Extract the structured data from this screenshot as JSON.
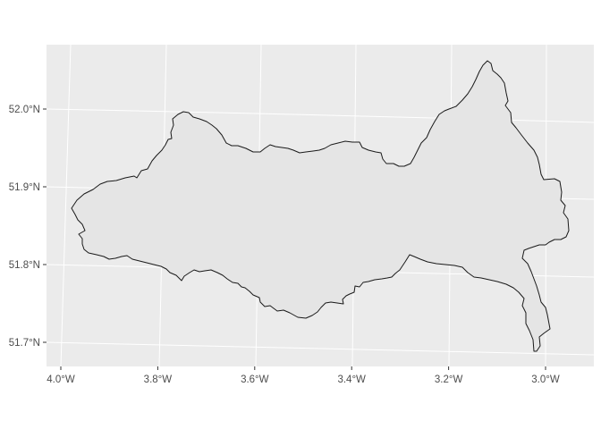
{
  "map": {
    "type": "geographic-region-outline",
    "panel_background": "#ebebeb",
    "gridline_color": "#ffffff",
    "region_fill": "#e5e5e5",
    "region_stroke": "#1a1a1a",
    "lon_range": [
      -4.0,
      -2.9
    ],
    "lat_range": [
      51.68,
      52.07
    ],
    "lon_ticks": [
      {
        "value": -4.0,
        "label": "4.0°W"
      },
      {
        "value": -3.8,
        "label": "3.8°W"
      },
      {
        "value": -3.6,
        "label": "3.6°W"
      },
      {
        "value": -3.4,
        "label": "3.4°W"
      },
      {
        "value": -3.2,
        "label": "3.2°W"
      },
      {
        "value": -3.0,
        "label": "3.0°W"
      }
    ],
    "lat_ticks": [
      {
        "value": 52.0,
        "label": "52.0°N"
      },
      {
        "value": 51.9,
        "label": "51.9°N"
      },
      {
        "value": 51.8,
        "label": "51.8°N"
      },
      {
        "value": 51.7,
        "label": "51.7°N"
      }
    ]
  }
}
